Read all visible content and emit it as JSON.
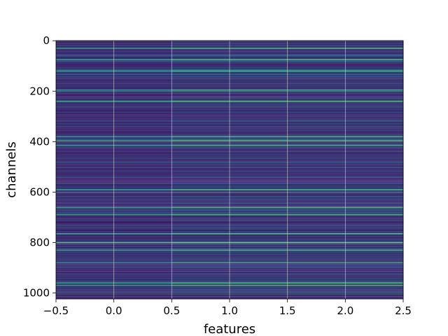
{
  "chart_data": {
    "type": "heatmap",
    "title": "",
    "xlabel": "features",
    "ylabel": "channels",
    "x_ticks": [
      "−0.5",
      "0.0",
      "0.5",
      "1.0",
      "1.5",
      "2.0",
      "2.5"
    ],
    "x_tick_values": [
      -0.5,
      0.0,
      0.5,
      1.0,
      1.5,
      2.0,
      2.5
    ],
    "y_ticks": [
      "0",
      "200",
      "400",
      "600",
      "800",
      "1000"
    ],
    "y_tick_values": [
      0,
      200,
      400,
      600,
      800,
      1000
    ],
    "xlim": [
      -0.5,
      2.5
    ],
    "ylim": [
      1023.5,
      -0.5
    ],
    "n_rows": 1024,
    "n_cols": 3,
    "colormap": "viridis",
    "grid": true,
    "value_range": [
      0,
      1
    ],
    "notable_bright_rows": [
      30,
      75,
      120,
      195,
      240,
      380,
      395,
      415,
      590,
      660,
      690,
      765,
      800,
      830,
      880,
      960,
      970
    ],
    "note_rows": "individual cell values are not printed; rows reproduced as pseudo-random viridis levels"
  }
}
